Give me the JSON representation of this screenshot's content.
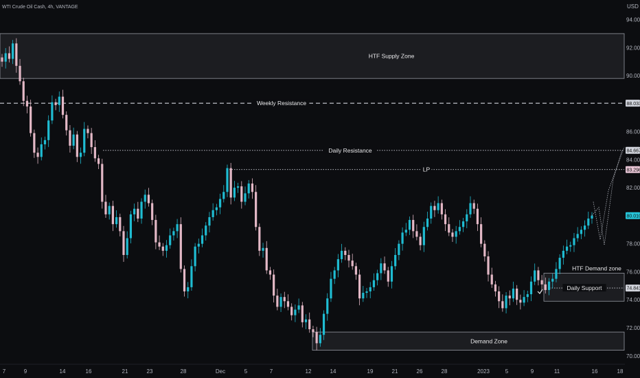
{
  "header": {
    "title": "WTI Crude Oil Cash, 4h, VANTAGE",
    "currency": "USD"
  },
  "colors": {
    "background": "#0c0d10",
    "up": "#1fbcd2",
    "down": "#e3b8c6",
    "zone_fill": "#2a2b30",
    "zone_stroke": "#9598a1",
    "dashed": "#d1d4dc",
    "tag_pink": "#e6c4d4",
    "tag_cyan": "#26c6da",
    "tag_white": "#d1d4dc"
  },
  "chart_data": {
    "type": "candlestick",
    "title": "WTI Crude Oil Cash, 4h, VANTAGE",
    "y_axis": {
      "unit": "USD",
      "range": [
        69.4,
        95.4
      ],
      "ticks": [
        "94.000",
        "92.000",
        "90.000",
        "88.000",
        "86.000",
        "84.000",
        "82.000",
        "80.000",
        "78.000",
        "76.000",
        "74.000",
        "72.000",
        "70.000"
      ]
    },
    "x_axis": {
      "ticks": [
        "7",
        "9",
        "14",
        "16",
        "21",
        "23",
        "28",
        "Dec",
        "5",
        "7",
        "12",
        "14",
        "19",
        "21",
        "26",
        "28",
        "2023",
        "5",
        "9",
        "11",
        "16",
        "18"
      ]
    },
    "zones": [
      {
        "label": "HTF Supply Zone",
        "from": 89.8,
        "to": 93.0
      },
      {
        "label": "Demand Zone",
        "from": 70.4,
        "to": 71.7
      },
      {
        "label": "HTF Demand zone",
        "from": 73.9,
        "to": 75.9
      }
    ],
    "levels": [
      {
        "label": "Weekly Resistance",
        "price": 88.033,
        "tag": "88.033",
        "style": "dashed"
      },
      {
        "label": "Daily Resistance",
        "price": 84.667,
        "tag": "84.667",
        "style": "dotted"
      },
      {
        "label": "LP",
        "price": 83.298,
        "tag": "83.298",
        "style": "dotted"
      },
      {
        "label": "Daily Support",
        "price": 74.841,
        "tag": "74.841",
        "style": "dotted"
      }
    ],
    "last_price": {
      "value": 80.01,
      "tag": "80.010"
    },
    "projection": [
      [
        80.4,
        77.9
      ],
      [
        81.2,
        78.3
      ],
      [
        82.6,
        84.7
      ]
    ],
    "closes": [
      91.0,
      91.6,
      91.2,
      92.3,
      90.7,
      89.6,
      88.2,
      87.8,
      85.9,
      84.5,
      84.2,
      85.1,
      85.4,
      86.8,
      88.1,
      87.9,
      88.5,
      87.2,
      86.1,
      85.0,
      85.8,
      84.2,
      84.5,
      86.2,
      85.9,
      84.9,
      84.1,
      83.7,
      81.0,
      80.1,
      80.7,
      79.4,
      79.9,
      78.9,
      77.2,
      78.4,
      80.1,
      80.5,
      79.8,
      81.0,
      81.5,
      80.9,
      79.7,
      78.1,
      77.8,
      77.5,
      77.9,
      78.6,
      78.9,
      79.4,
      76.2,
      74.6,
      74.9,
      76.4,
      77.8,
      78.0,
      78.6,
      79.3,
      79.9,
      80.4,
      80.6,
      81.2,
      81.7,
      83.4,
      81.3,
      82.0,
      82.1,
      81.0,
      81.6,
      82.3,
      81.7,
      79.2,
      77.5,
      77.7,
      76.1,
      75.8,
      74.3,
      73.5,
      74.2,
      73.9,
      73.5,
      72.9,
      73.3,
      73.6,
      72.4,
      72.6,
      71.9,
      71.7,
      70.9,
      71.5,
      73.0,
      74.1,
      75.5,
      76.1,
      76.9,
      77.5,
      77.2,
      76.8,
      76.4,
      75.8,
      74.1,
      74.5,
      74.6,
      74.9,
      75.4,
      75.9,
      76.6,
      76.1,
      75.3,
      76.4,
      77.2,
      78.0,
      78.8,
      79.0,
      79.7,
      78.9,
      78.5,
      77.9,
      79.2,
      79.8,
      80.7,
      80.4,
      80.9,
      80.1,
      79.4,
      78.8,
      78.5,
      78.9,
      79.2,
      79.6,
      80.1,
      80.9,
      80.5,
      79.4,
      78.0,
      77.1,
      75.8,
      75.1,
      74.6,
      73.9,
      73.4,
      74.3,
      74.1,
      74.8,
      74.0,
      73.8,
      74.2,
      74.4,
      75.3,
      76.1,
      75.4,
      75.1,
      74.7,
      75.3,
      75.5,
      76.2,
      77.0,
      77.5,
      77.8,
      77.9,
      78.4,
      78.7,
      79.0,
      79.3,
      79.8,
      80.01
    ]
  }
}
